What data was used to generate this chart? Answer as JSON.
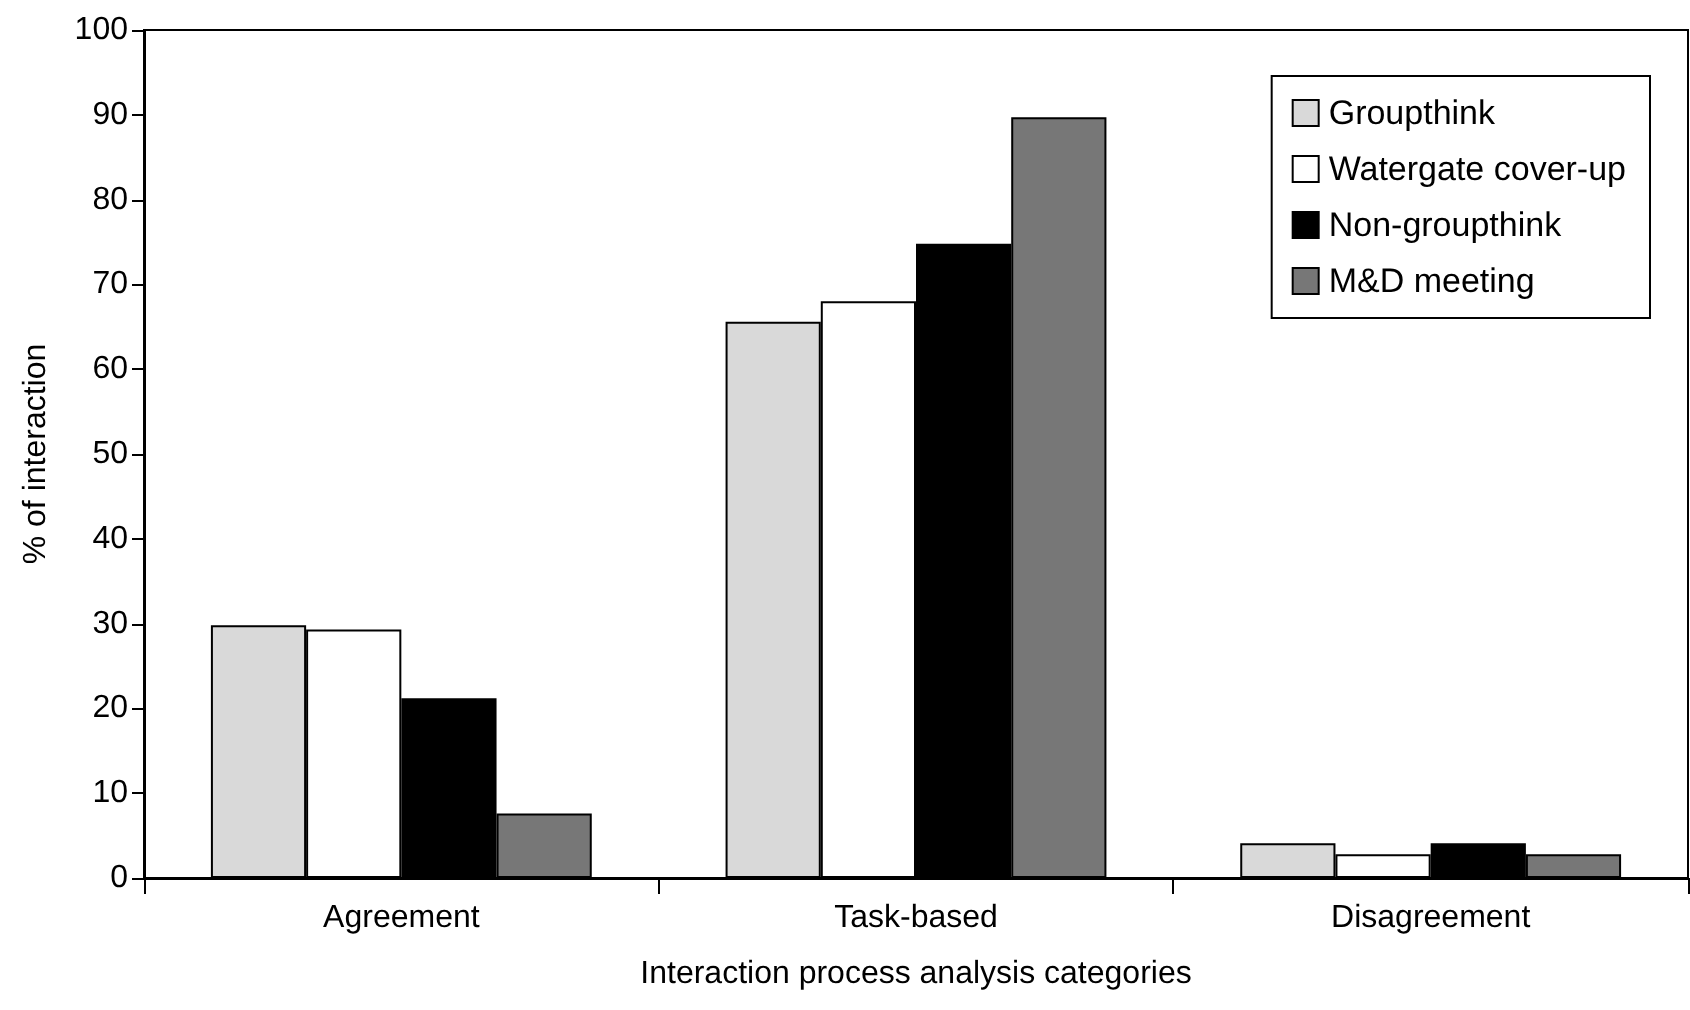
{
  "chart_data": {
    "type": "bar",
    "xlabel": "Interaction process analysis categories",
    "ylabel": "% of interaction",
    "categories": [
      "Agreement",
      "Task-based",
      "Disagreement"
    ],
    "series": [
      {
        "name": "Groupthink",
        "color": "#d9d9d9",
        "values": [
          29.8,
          65.6,
          4.1
        ]
      },
      {
        "name": "Watergate cover-up",
        "color": "#ffffff",
        "values": [
          29.3,
          68.0,
          2.8
        ]
      },
      {
        "name": "Non-groupthink",
        "color": "#000000",
        "values": [
          21.2,
          74.8,
          4.1
        ]
      },
      {
        "name": "M&D meeting",
        "color": "#777777",
        "values": [
          7.6,
          89.7,
          2.8
        ]
      }
    ],
    "ylim": [
      0,
      100
    ],
    "yticks": [
      0,
      10,
      20,
      30,
      40,
      50,
      60,
      70,
      80,
      90,
      100
    ],
    "grid": false,
    "legend": "top right"
  }
}
